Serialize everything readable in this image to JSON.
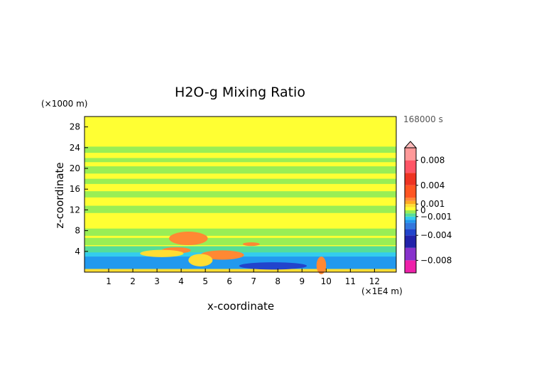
{
  "chart_data": {
    "type": "heatmap",
    "title": "H2O-g Mixing Ratio",
    "xlabel": "x-coordinate",
    "ylabel": "z-coordinate",
    "x_unit": "(×1E4 m)",
    "y_unit": "(×1000 m)",
    "time_label": "168000 s",
    "xlim": [
      0,
      12.9
    ],
    "ylim": [
      0,
      30
    ],
    "x_ticks": [
      "1",
      "2",
      "3",
      "4",
      "5",
      "6",
      "7",
      "8",
      "9",
      "10",
      "11",
      "12"
    ],
    "y_ticks": [
      "4",
      "8",
      "12",
      "16",
      "20",
      "24",
      "28"
    ],
    "colorbar": {
      "range": [
        -0.01,
        0.01
      ],
      "tick_labels": [
        {
          "label": "0.008",
          "value": 0.008
        },
        {
          "label": "0.004",
          "value": 0.004
        },
        {
          "label": "0.001",
          "value": 0.001
        },
        {
          "label": "0",
          "value": 0
        },
        {
          "label": "−0.001",
          "value": -0.001
        },
        {
          "label": "−0.004",
          "value": -0.004
        },
        {
          "label": "−0.008",
          "value": -0.008
        }
      ],
      "bands": [
        {
          "from": -0.01,
          "to": -0.008,
          "color": "#ee22aa"
        },
        {
          "from": -0.008,
          "to": -0.006,
          "color": "#8833cc"
        },
        {
          "from": -0.006,
          "to": -0.004,
          "color": "#2222aa"
        },
        {
          "from": -0.004,
          "to": -0.003,
          "color": "#2244cc"
        },
        {
          "from": -0.003,
          "to": -0.002,
          "color": "#3377dd"
        },
        {
          "from": -0.002,
          "to": -0.0015,
          "color": "#2299ee"
        },
        {
          "from": -0.0015,
          "to": -0.001,
          "color": "#33ccee"
        },
        {
          "from": -0.001,
          "to": -0.0005,
          "color": "#55dd99"
        },
        {
          "from": -0.0005,
          "to": 0,
          "color": "#99ee55"
        },
        {
          "from": 0,
          "to": 0.0005,
          "color": "#ffff33"
        },
        {
          "from": 0.0005,
          "to": 0.001,
          "color": "#ffdd33"
        },
        {
          "from": 0.001,
          "to": 0.0015,
          "color": "#ffaa22"
        },
        {
          "from": 0.0015,
          "to": 0.002,
          "color": "#ff8833"
        },
        {
          "from": 0.002,
          "to": 0.004,
          "color": "#ff5522"
        },
        {
          "from": 0.004,
          "to": 0.006,
          "color": "#ee3322"
        },
        {
          "from": 0.006,
          "to": 0.008,
          "color": "#ff5566"
        },
        {
          "from": 0.008,
          "to": 0.01,
          "color": "#ff9999"
        }
      ],
      "over_color": "#ffbbbb"
    },
    "field": {
      "background": 0.0002,
      "layers": [
        {
          "z": [
            23.0,
            24.2
          ],
          "value": -0.0003
        },
        {
          "z": [
            21.2,
            22.0
          ],
          "value": -0.0003
        },
        {
          "z": [
            19.0,
            20.4
          ],
          "value": -0.0003
        },
        {
          "z": [
            17.0,
            18.0
          ],
          "value": -0.0003
        },
        {
          "z": [
            14.4,
            15.6
          ],
          "value": -0.0003
        },
        {
          "z": [
            11.4,
            12.8
          ],
          "value": -0.0003
        },
        {
          "z": [
            7.0,
            8.4
          ],
          "value": -0.0003
        },
        {
          "z": [
            5.2,
            6.6
          ],
          "value": -0.0003
        },
        {
          "z": [
            2.2,
            5.0
          ],
          "value": -0.0008
        },
        {
          "z": [
            0.6,
            3.8
          ],
          "value": -0.0013
        },
        {
          "z": [
            0.6,
            3.0
          ],
          "value": -0.002
        },
        {
          "z": [
            0.0,
            0.6
          ],
          "value": 0.0007
        }
      ],
      "blobs": [
        {
          "x": 4.3,
          "z": 6.5,
          "rx": 0.8,
          "rz": 1.3,
          "value": 0.0018
        },
        {
          "x": 3.8,
          "z": 4.2,
          "rx": 0.6,
          "rz": 0.6,
          "value": 0.0016
        },
        {
          "x": 5.7,
          "z": 3.3,
          "rx": 0.9,
          "rz": 0.9,
          "value": 0.0016
        },
        {
          "x": 6.9,
          "z": 5.4,
          "rx": 0.35,
          "rz": 0.35,
          "value": 0.0016
        },
        {
          "x": 4.8,
          "z": 2.3,
          "rx": 0.5,
          "rz": 1.2,
          "value": 0.0007
        },
        {
          "x": 3.2,
          "z": 3.6,
          "rx": 0.9,
          "rz": 0.7,
          "value": 0.0007
        },
        {
          "x": 9.8,
          "z": 1.3,
          "rx": 0.2,
          "rz": 1.7,
          "value": 0.0017
        },
        {
          "x": 7.8,
          "z": 1.2,
          "rx": 1.4,
          "rz": 0.7,
          "value": -0.0032
        }
      ]
    }
  }
}
